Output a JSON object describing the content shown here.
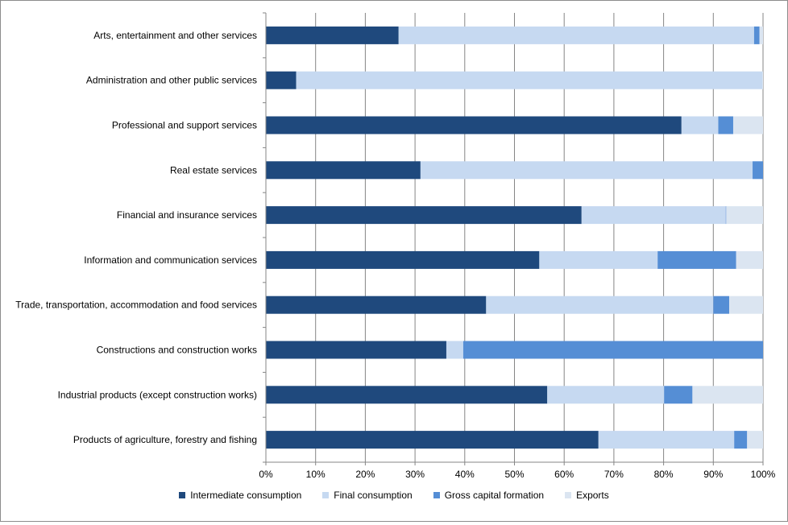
{
  "chart_data": {
    "type": "bar",
    "orientation": "horizontal",
    "stacked": "percent",
    "categories": [
      "Arts, entertainment and other services",
      "Administration and other public services",
      "Professional and support services",
      "Real estate services",
      "Financial and insurance services",
      "Information and communication services",
      "Trade, transportation, accommodation and food services",
      "Constructions and construction works",
      "Industrial products (except construction works)",
      "Products of agriculture, forestry and fishing"
    ],
    "series": [
      {
        "name": "Intermediate consumption",
        "color": "#1f497d",
        "values": [
          26.7,
          6.1,
          83.6,
          31.1,
          63.5,
          55.0,
          44.3,
          36.3,
          56.6,
          66.9
        ]
      },
      {
        "name": "Final consumption",
        "color": "#c6d9f1",
        "values": [
          71.5,
          93.8,
          7.4,
          66.8,
          29.0,
          23.8,
          45.7,
          3.4,
          23.5,
          27.3
        ]
      },
      {
        "name": "Gross capital formation",
        "color": "#558ed5",
        "values": [
          1.1,
          0.0,
          3.0,
          2.1,
          0.1,
          15.8,
          3.2,
          60.3,
          5.7,
          2.6
        ]
      },
      {
        "name": "Exports",
        "color": "#dbe5f1",
        "values": [
          0.7,
          0.1,
          6.0,
          0.0,
          7.4,
          5.4,
          6.8,
          0.0,
          14.2,
          3.2
        ]
      }
    ],
    "xlim": [
      0,
      100
    ],
    "xticks": [
      "0%",
      "10%",
      "20%",
      "30%",
      "40%",
      "50%",
      "60%",
      "70%",
      "80%",
      "90%",
      "100%"
    ],
    "grid": true,
    "legend_position": "bottom",
    "title": "",
    "xlabel": "",
    "ylabel": ""
  }
}
